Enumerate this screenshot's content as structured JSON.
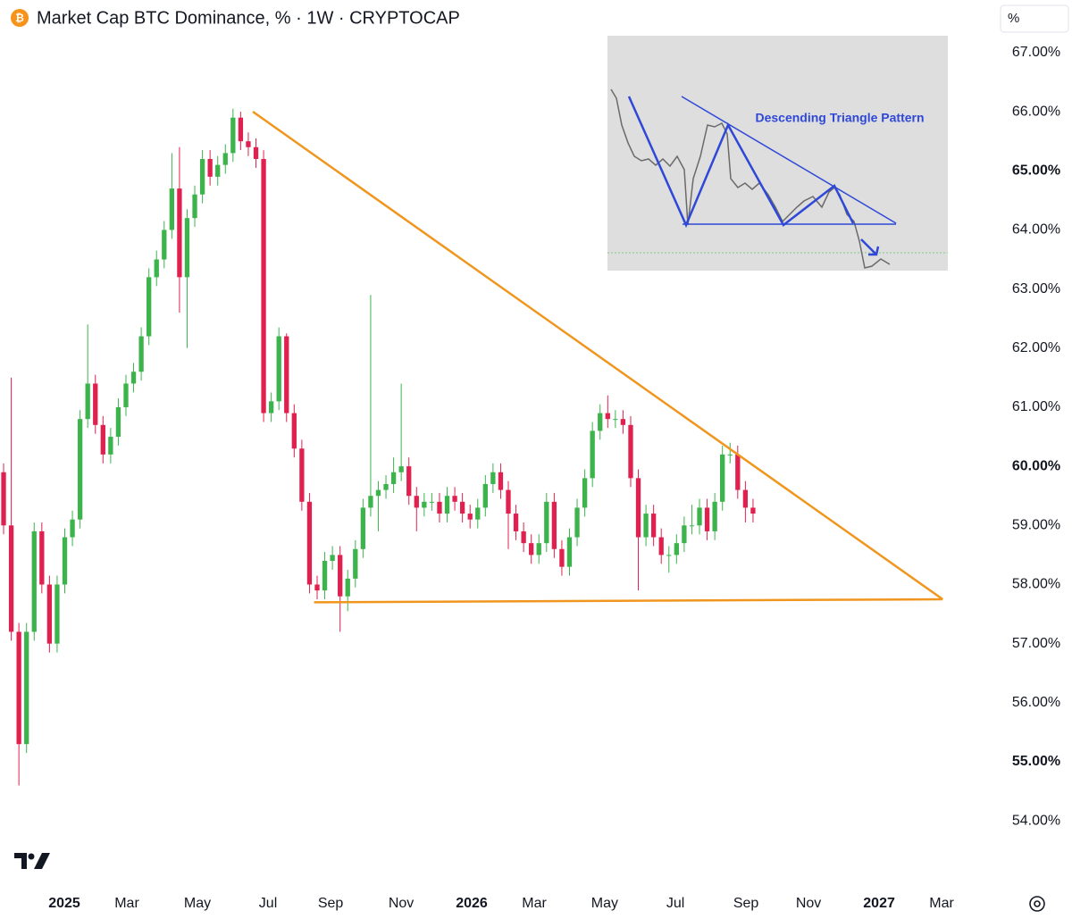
{
  "chart_data": {
    "type": "candlestick",
    "title": "Market Cap BTC Dominance, % · 1W · CRYPTOCAP",
    "unit_label": "%",
    "up_color": "#3cb44b",
    "down_color": "#e0214f",
    "trend_color": "#f0961e",
    "ylim": [
      52.93,
      67.89
    ],
    "yticks": [
      {
        "value": 67,
        "label": "67.00%"
      },
      {
        "value": 66,
        "label": "66.00%"
      },
      {
        "value": 65,
        "label": "65.00%",
        "bold": true
      },
      {
        "value": 64,
        "label": "64.00%"
      },
      {
        "value": 63,
        "label": "63.00%"
      },
      {
        "value": 62,
        "label": "62.00%"
      },
      {
        "value": 61,
        "label": "61.00%"
      },
      {
        "value": 60,
        "label": "60.00%",
        "bold": true
      },
      {
        "value": 59,
        "label": "59.00%"
      },
      {
        "value": 58,
        "label": "58.00%"
      },
      {
        "value": 57,
        "label": "57.00%"
      },
      {
        "value": 56,
        "label": "56.00%"
      },
      {
        "value": 55,
        "label": "55.00%",
        "bold": true
      },
      {
        "value": 54,
        "label": "54.00%"
      }
    ],
    "xlim": [
      -0.47,
      128.03
    ],
    "xticks": [
      {
        "value": 7.94,
        "label": "2025",
        "bold": true
      },
      {
        "value": 16.12,
        "label": "Mar"
      },
      {
        "value": 25.35,
        "label": "May"
      },
      {
        "value": 34.58,
        "label": "Jul"
      },
      {
        "value": 42.76,
        "label": "Sep"
      },
      {
        "value": 51.99,
        "label": "Nov"
      },
      {
        "value": 61.21,
        "label": "2026",
        "bold": true
      },
      {
        "value": 69.39,
        "label": "Mar"
      },
      {
        "value": 78.6,
        "label": "May"
      },
      {
        "value": 87.85,
        "label": "Jul"
      },
      {
        "value": 97.08,
        "label": "Sep"
      },
      {
        "value": 105.26,
        "label": "Nov"
      },
      {
        "value": 114.49,
        "label": "2027",
        "bold": true
      },
      {
        "value": 122.66,
        "label": "Mar"
      }
    ],
    "trendlines": [
      {
        "x": [
          32.6,
          122.8
        ],
        "y": [
          66.0,
          57.75
        ]
      },
      {
        "x": [
          40.6,
          122.8
        ],
        "y": [
          57.7,
          57.75
        ]
      }
    ],
    "inset_title": "Descending Triangle Pattern",
    "ohlc": [
      [
        59.9,
        60.05,
        58.85,
        59.0
      ],
      [
        59.0,
        61.5,
        57.05,
        57.2
      ],
      [
        57.2,
        57.35,
        54.6,
        55.3
      ],
      [
        55.3,
        57.35,
        55.15,
        57.2
      ],
      [
        57.2,
        59.05,
        57.05,
        58.9
      ],
      [
        58.9,
        59.05,
        57.85,
        58.0
      ],
      [
        58.0,
        58.15,
        56.85,
        57.0
      ],
      [
        57.0,
        58.15,
        56.85,
        58.0
      ],
      [
        58.0,
        58.95,
        57.85,
        58.8
      ],
      [
        58.8,
        59.25,
        58.65,
        59.1
      ],
      [
        59.1,
        60.95,
        58.95,
        60.8
      ],
      [
        60.8,
        62.4,
        60.65,
        61.4
      ],
      [
        61.4,
        61.55,
        60.55,
        60.7
      ],
      [
        60.7,
        60.85,
        60.05,
        60.2
      ],
      [
        60.2,
        60.65,
        60.05,
        60.5
      ],
      [
        60.5,
        61.15,
        60.35,
        61.0
      ],
      [
        61.0,
        61.55,
        60.85,
        61.4
      ],
      [
        61.4,
        61.75,
        61.25,
        61.6
      ],
      [
        61.6,
        62.35,
        61.45,
        62.2
      ],
      [
        62.2,
        63.35,
        62.05,
        63.2
      ],
      [
        63.2,
        63.65,
        63.05,
        63.5
      ],
      [
        63.5,
        64.15,
        63.35,
        64.0
      ],
      [
        64.0,
        65.3,
        63.85,
        64.7
      ],
      [
        64.7,
        65.4,
        62.6,
        63.2
      ],
      [
        63.2,
        64.35,
        62.0,
        64.2
      ],
      [
        64.2,
        64.75,
        64.05,
        64.6
      ],
      [
        64.6,
        65.35,
        64.45,
        65.2
      ],
      [
        65.2,
        65.35,
        64.75,
        64.9
      ],
      [
        64.9,
        65.25,
        64.75,
        65.1
      ],
      [
        65.1,
        65.45,
        64.95,
        65.3
      ],
      [
        65.3,
        66.05,
        65.15,
        65.9
      ],
      [
        65.9,
        66.0,
        65.35,
        65.5
      ],
      [
        65.5,
        65.65,
        65.25,
        65.4
      ],
      [
        65.4,
        65.55,
        65.05,
        65.2
      ],
      [
        65.2,
        65.35,
        60.75,
        60.9
      ],
      [
        60.9,
        61.25,
        60.75,
        61.1
      ],
      [
        61.1,
        62.35,
        60.95,
        62.2
      ],
      [
        62.2,
        62.25,
        60.75,
        60.9
      ],
      [
        60.9,
        61.05,
        60.15,
        60.3
      ],
      [
        60.3,
        60.45,
        59.25,
        59.4
      ],
      [
        59.4,
        59.55,
        57.85,
        58.0
      ],
      [
        58.0,
        58.15,
        57.75,
        57.9
      ],
      [
        57.9,
        58.55,
        57.75,
        58.4
      ],
      [
        58.4,
        58.65,
        58.25,
        58.5
      ],
      [
        58.5,
        58.65,
        57.2,
        57.8
      ],
      [
        57.8,
        58.25,
        57.55,
        58.1
      ],
      [
        58.1,
        58.75,
        57.95,
        58.6
      ],
      [
        58.6,
        59.45,
        58.45,
        59.3
      ],
      [
        59.3,
        62.9,
        59.15,
        59.5
      ],
      [
        59.5,
        59.75,
        58.9,
        59.6
      ],
      [
        59.6,
        59.85,
        59.45,
        59.7
      ],
      [
        59.7,
        60.15,
        59.55,
        59.9
      ],
      [
        59.9,
        61.4,
        59.75,
        60.0
      ],
      [
        60.0,
        60.15,
        59.35,
        59.5
      ],
      [
        59.5,
        59.65,
        58.9,
        59.3
      ],
      [
        59.3,
        59.55,
        59.15,
        59.4
      ],
      [
        59.4,
        59.55,
        59.25,
        59.4
      ],
      [
        59.4,
        59.55,
        59.05,
        59.2
      ],
      [
        59.2,
        59.65,
        59.05,
        59.5
      ],
      [
        59.5,
        59.65,
        59.25,
        59.4
      ],
      [
        59.4,
        59.55,
        59.05,
        59.2
      ],
      [
        59.2,
        59.35,
        58.95,
        59.1
      ],
      [
        59.1,
        59.45,
        58.95,
        59.3
      ],
      [
        59.3,
        59.85,
        59.15,
        59.7
      ],
      [
        59.7,
        60.05,
        59.55,
        59.9
      ],
      [
        59.9,
        60.05,
        59.45,
        59.6
      ],
      [
        59.6,
        59.75,
        58.6,
        59.2
      ],
      [
        59.2,
        59.35,
        58.75,
        58.9
      ],
      [
        58.9,
        59.05,
        58.55,
        58.7
      ],
      [
        58.7,
        58.85,
        58.35,
        58.5
      ],
      [
        58.5,
        58.85,
        58.35,
        58.7
      ],
      [
        58.7,
        59.55,
        58.55,
        59.4
      ],
      [
        59.4,
        59.55,
        58.45,
        58.6
      ],
      [
        58.6,
        58.75,
        58.15,
        58.3
      ],
      [
        58.3,
        58.95,
        58.15,
        58.8
      ],
      [
        58.8,
        59.45,
        58.65,
        59.3
      ],
      [
        59.3,
        59.95,
        59.15,
        59.8
      ],
      [
        59.8,
        60.75,
        59.65,
        60.6
      ],
      [
        60.6,
        61.05,
        60.45,
        60.9
      ],
      [
        60.9,
        61.2,
        60.65,
        60.8
      ],
      [
        60.8,
        60.95,
        60.65,
        60.8
      ],
      [
        60.8,
        60.95,
        60.55,
        60.7
      ],
      [
        60.7,
        60.85,
        59.65,
        59.8
      ],
      [
        59.8,
        59.95,
        57.9,
        58.8
      ],
      [
        58.8,
        59.35,
        58.65,
        59.2
      ],
      [
        59.2,
        59.35,
        58.65,
        58.8
      ],
      [
        58.8,
        58.95,
        58.35,
        58.5
      ],
      [
        58.5,
        58.65,
        58.2,
        58.5
      ],
      [
        58.5,
        58.85,
        58.35,
        58.7
      ],
      [
        58.7,
        59.15,
        58.55,
        59.0
      ],
      [
        59.0,
        59.35,
        58.85,
        59.0
      ],
      [
        59.0,
        59.45,
        58.85,
        59.3
      ],
      [
        59.3,
        59.45,
        58.75,
        58.9
      ],
      [
        58.9,
        59.55,
        58.75,
        59.4
      ],
      [
        59.4,
        60.35,
        59.25,
        60.2
      ],
      [
        60.2,
        60.4,
        60.05,
        60.2
      ],
      [
        60.2,
        60.35,
        59.45,
        59.6
      ],
      [
        59.6,
        59.75,
        59.05,
        59.3
      ],
      [
        59.3,
        59.45,
        59.05,
        59.2
      ]
    ]
  }
}
